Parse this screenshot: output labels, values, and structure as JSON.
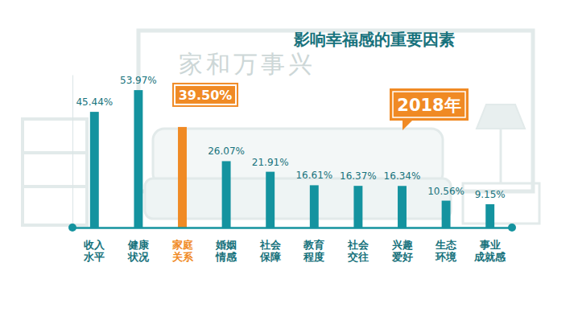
{
  "chart_data": {
    "type": "bar",
    "title": "影响幸福感的重要因素",
    "annotations": [
      "家和万事兴",
      "2018年"
    ],
    "categories": [
      "收入\n水平",
      "健康\n状况",
      "家庭\n关系",
      "婚姻\n情感",
      "社会\n保障",
      "教育\n程度",
      "社会\n交往",
      "兴趣\n爱好",
      "生态\n环境",
      "事业\n成就感"
    ],
    "values": [
      45.44,
      53.97,
      39.5,
      26.07,
      21.91,
      16.61,
      16.37,
      16.34,
      10.56,
      9.15
    ],
    "value_labels": [
      "45.44%",
      "53.97%",
      "39.50%",
      "26.07%",
      "21.91%",
      "16.61%",
      "16.37%",
      "16.34%",
      "10.56%",
      "9.15%"
    ],
    "colors": [
      "#14939f",
      "#14939f",
      "#f08a24",
      "#14939f",
      "#14939f",
      "#14939f",
      "#14939f",
      "#14939f",
      "#14939f",
      "#14939f"
    ],
    "ylim": [
      0,
      60
    ],
    "yticks": [],
    "grid": false,
    "data_labels": true,
    "tick_labels": "x"
  }
}
